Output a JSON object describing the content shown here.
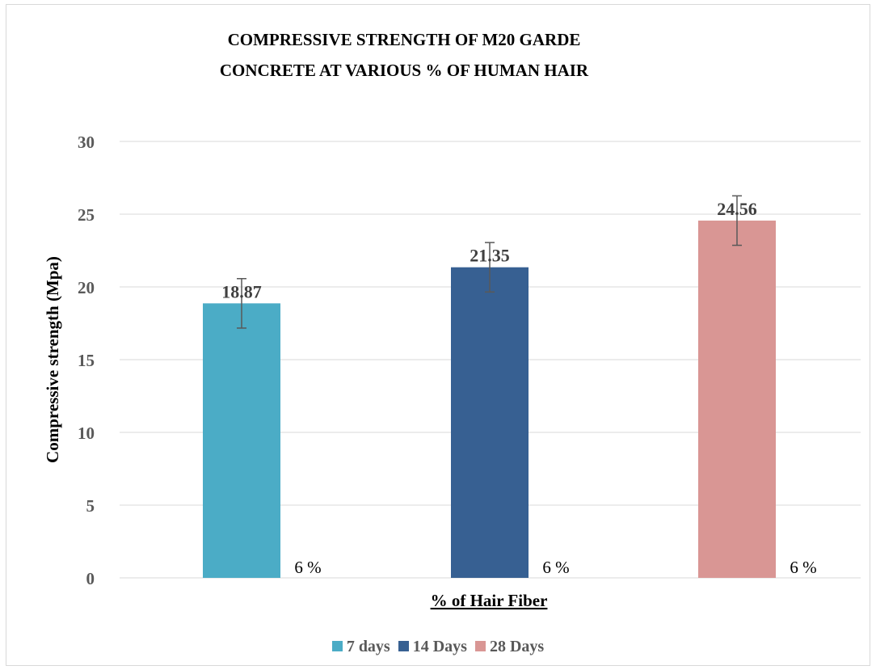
{
  "chart_data": {
    "type": "bar",
    "title_lines": [
      "COMPRESSIVE STRENGTH OF M20 GARDE",
      "CONCRETE AT VARIOUS % OF HUMAN HAIR"
    ],
    "xlabel": "% of Hair Fiber",
    "ylabel": "Compressive strength (Mpa)",
    "ylim": [
      0,
      30
    ],
    "yticks": [
      0,
      5,
      10,
      15,
      20,
      25,
      30
    ],
    "grid": true,
    "legend_position": "bottom",
    "categories": [
      "6 %"
    ],
    "series": [
      {
        "name": "7 days",
        "values": [
          18.87
        ],
        "value_label": "18.87",
        "error": 1.7,
        "color": "#4bacc6"
      },
      {
        "name": "14 Days",
        "values": [
          21.35
        ],
        "value_label": "21.35",
        "error": 1.7,
        "color": "#376092"
      },
      {
        "name": "28 Days",
        "values": [
          24.56
        ],
        "value_label": "24.56",
        "error": 1.7,
        "color": "#d99694"
      }
    ]
  }
}
